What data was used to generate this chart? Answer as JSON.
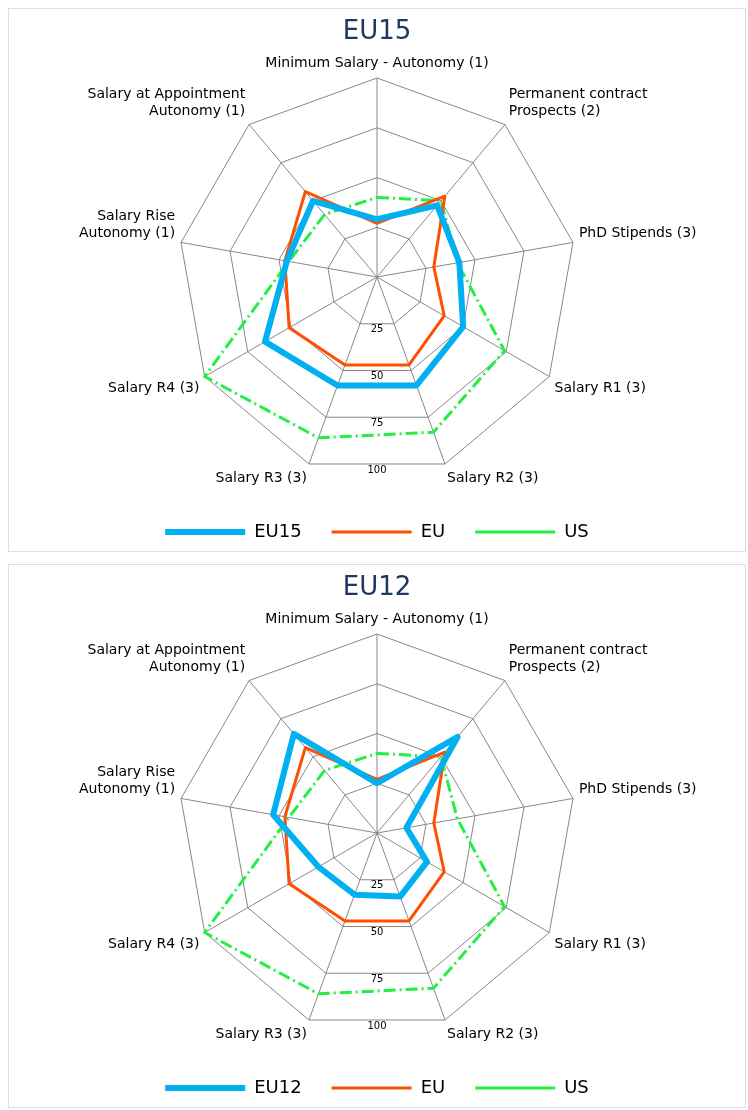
{
  "chart_data": [
    {
      "type": "radar",
      "title": "EU15",
      "categories": [
        "Minimum Salary - Autonomy (1)",
        "Permanent contract\nProspects (2)",
        "PhD Stipends (3)",
        "Salary R1 (3)",
        "Salary R2 (3)",
        "Salary R3 (3)",
        "Salary R4 (3)",
        "Salary Rise\nAutonomy (1)",
        "Salary at Appointment\nAutonomy (1)"
      ],
      "ylim": [
        0,
        100
      ],
      "yticks": [
        25,
        50,
        75,
        100
      ],
      "grid": true,
      "legend": "bottom",
      "marker": "none",
      "series": [
        {
          "name": "EU15",
          "color": "#00b0f0",
          "line_style": "solid",
          "values": [
            29,
            47,
            42,
            50,
            58,
            58,
            65,
            46,
            50
          ]
        },
        {
          "name": "EU",
          "color": "#ff4f00",
          "line_style": "solid",
          "values": [
            27,
            53,
            29,
            39,
            47,
            47,
            51,
            47,
            56
          ]
        },
        {
          "name": "US",
          "color": "#22ee44",
          "line_style": "dashed",
          "values": [
            40,
            50,
            41,
            74,
            83,
            86,
            100,
            45,
            41
          ]
        }
      ]
    },
    {
      "type": "radar",
      "title": "EU12",
      "categories": [
        "Minimum Salary - Autonomy (1)",
        "Permanent contract\nProspects (2)",
        "PhD Stipends (3)",
        "Salary R1 (3)",
        "Salary R2 (3)",
        "Salary R3 (3)",
        "Salary R4 (3)",
        "Salary Rise\nAutonomy (1)",
        "Salary at Appointment\nAutonomy (1)"
      ],
      "ylim": [
        0,
        100
      ],
      "yticks": [
        25,
        50,
        75,
        100
      ],
      "grid": true,
      "legend": "bottom",
      "marker": "none",
      "series": [
        {
          "name": "EU12",
          "color": "#00b0f0",
          "line_style": "solid",
          "values": [
            25,
            63,
            15,
            29,
            34,
            33,
            34,
            53,
            65
          ]
        },
        {
          "name": "EU",
          "color": "#ff4f00",
          "line_style": "solid",
          "values": [
            27,
            53,
            29,
            39,
            47,
            47,
            51,
            47,
            56
          ]
        },
        {
          "name": "US",
          "color": "#22ee44",
          "line_style": "dashed",
          "values": [
            40,
            50,
            41,
            74,
            83,
            86,
            100,
            45,
            41
          ]
        }
      ]
    }
  ]
}
